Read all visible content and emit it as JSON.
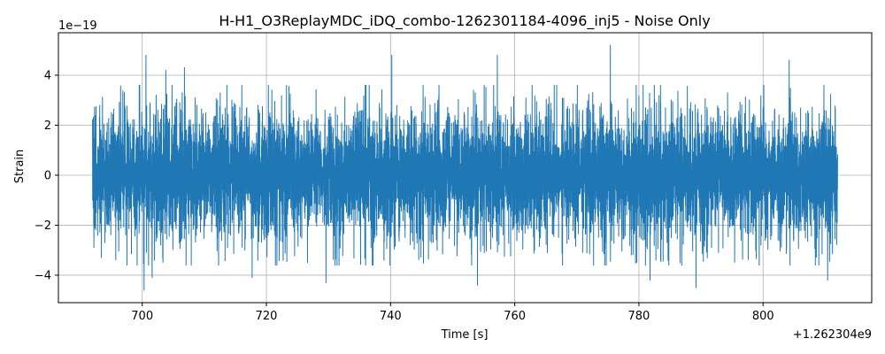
{
  "chart_data": {
    "type": "line",
    "title": "H-H1_O3ReplayMDC_iDQ_combo-1262301184-4096_inj5 - Noise Only",
    "xlabel": "Time [s]",
    "ylabel": "Strain",
    "x_offset_label": "+1.262304e9",
    "y_scale_label": "1e−19",
    "xlim": [
      686.5,
      817.5
    ],
    "ylim": [
      -5.1,
      5.7
    ],
    "x_ticks": [
      700,
      720,
      740,
      760,
      780,
      800
    ],
    "x_tick_labels": [
      "700",
      "720",
      "740",
      "760",
      "780",
      "800"
    ],
    "y_ticks": [
      -4,
      -2,
      0,
      2,
      4
    ],
    "y_tick_labels": [
      "−4",
      "−2",
      "0",
      "2",
      "4"
    ],
    "grid": true,
    "series": [
      {
        "color": "#1f77b4",
        "x_range": [
          692,
          812
        ],
        "typical_amplitude": 1.6,
        "noise": true,
        "peaks": [
          {
            "x": 700.6,
            "y": 4.8
          },
          {
            "x": 703.8,
            "y": 4.2
          },
          {
            "x": 706.8,
            "y": 4.3
          },
          {
            "x": 740.2,
            "y": 4.8
          },
          {
            "x": 757.2,
            "y": 4.8
          },
          {
            "x": 775.4,
            "y": 5.2
          },
          {
            "x": 804.2,
            "y": 4.6
          }
        ],
        "troughs": [
          {
            "x": 700.3,
            "y": -4.6
          },
          {
            "x": 701.6,
            "y": -4.1
          },
          {
            "x": 717.7,
            "y": -4.1
          },
          {
            "x": 729.6,
            "y": -4.3
          },
          {
            "x": 754.0,
            "y": -4.4
          },
          {
            "x": 781.8,
            "y": -4.2
          },
          {
            "x": 789.2,
            "y": -4.5
          },
          {
            "x": 810.4,
            "y": -4.2
          }
        ]
      }
    ]
  }
}
